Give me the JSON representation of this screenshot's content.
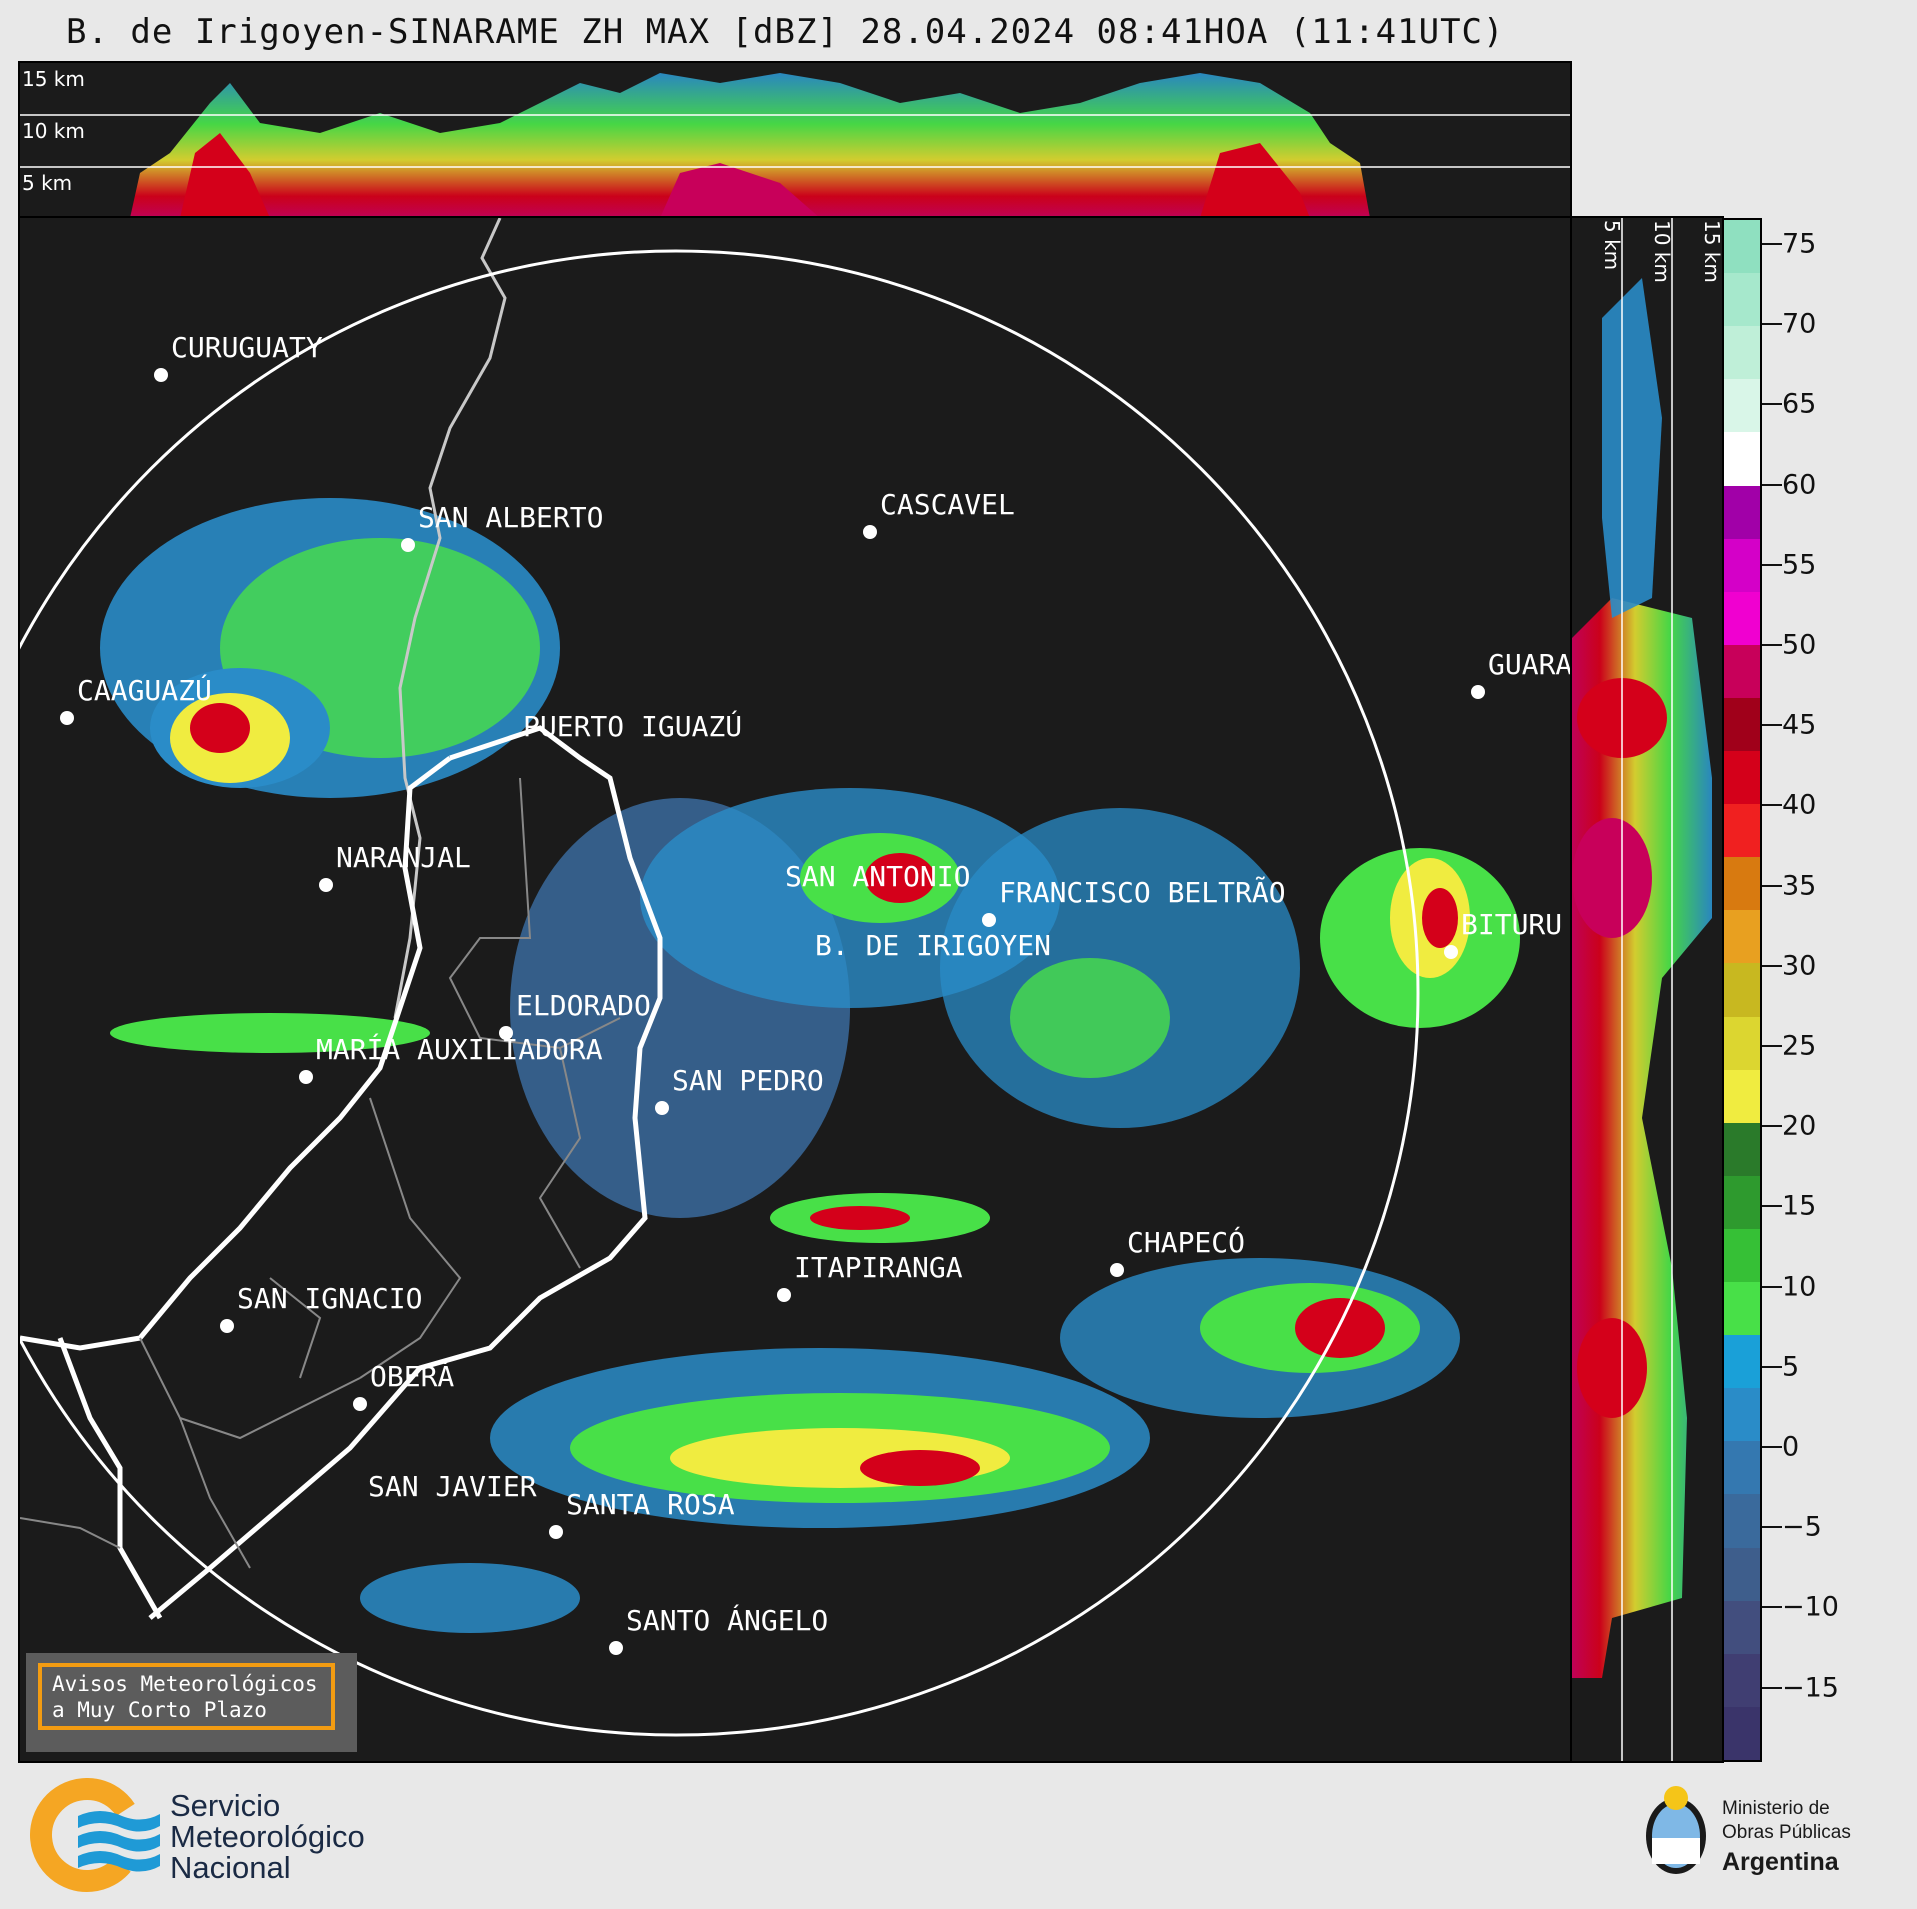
{
  "title": "B. de Irigoyen-SINARAME ZH MAX [dBZ] 28.04.2024 08:41HOA (11:41UTC)",
  "top_profile": {
    "labels": [
      "15 km",
      "10 km",
      "5 km"
    ]
  },
  "side_profile": {
    "labels": [
      "5 km",
      "10 km",
      "15 km"
    ]
  },
  "colorbar": {
    "ticks": [
      "75",
      "70",
      "65",
      "60",
      "55",
      "50",
      "45",
      "40",
      "35",
      "30",
      "25",
      "20",
      "15",
      "10",
      "5",
      "0",
      "−5",
      "−10",
      "−15"
    ],
    "colors": [
      "#8fe0c0",
      "#a6e8cc",
      "#bfefd8",
      "#d9f6e8",
      "#ffffff",
      "#a100a8",
      "#d400c8",
      "#f000d0",
      "#c8005a",
      "#a0001a",
      "#d4001a",
      "#f02020",
      "#d87a10",
      "#e8a020",
      "#c8b820",
      "#dcd630",
      "#f0ec40",
      "#2a7a2a",
      "#2e9a2e",
      "#36c036",
      "#48e048",
      "#1aa0d8",
      "#2a8cc8",
      "#3478b0",
      "#3a6a9c",
      "#3e5e8c",
      "#424e7e",
      "#403e72",
      "#3a346a"
    ]
  },
  "cities": [
    {
      "name": "CURUGUATY"
    },
    {
      "name": "SAN ALBERTO"
    },
    {
      "name": "CASCAVEL"
    },
    {
      "name": "CAAGUAZÚ"
    },
    {
      "name": "GUARA"
    },
    {
      "name": "PUERTO IGUAZÚ"
    },
    {
      "name": "NARANJAL"
    },
    {
      "name": "SAN ANTONIO"
    },
    {
      "name": "FRANCISCO BELTRÃO"
    },
    {
      "name": "BITURU"
    },
    {
      "name": "B. DE IRIGOYEN"
    },
    {
      "name": "ELDORADO"
    },
    {
      "name": "MARÍA AUXILIADORA"
    },
    {
      "name": "SAN PEDRO"
    },
    {
      "name": "CHAPECÓ"
    },
    {
      "name": "ITAPIRANGA"
    },
    {
      "name": "SAN IGNACIO"
    },
    {
      "name": "OBERÁ"
    },
    {
      "name": "SAN JAVIER"
    },
    {
      "name": "SANTA ROSA"
    },
    {
      "name": "SANTO ÁNGELO"
    }
  ],
  "badge": {
    "line1": "Avisos Meteorológicos",
    "line2": "a Muy Corto Plazo"
  },
  "smn": {
    "line1": "Servicio",
    "line2": "Meteorológico",
    "line3": "Nacional"
  },
  "ministry": {
    "line1": "Ministerio de",
    "line2": "Obras Públicas",
    "line3": "Argentina"
  }
}
